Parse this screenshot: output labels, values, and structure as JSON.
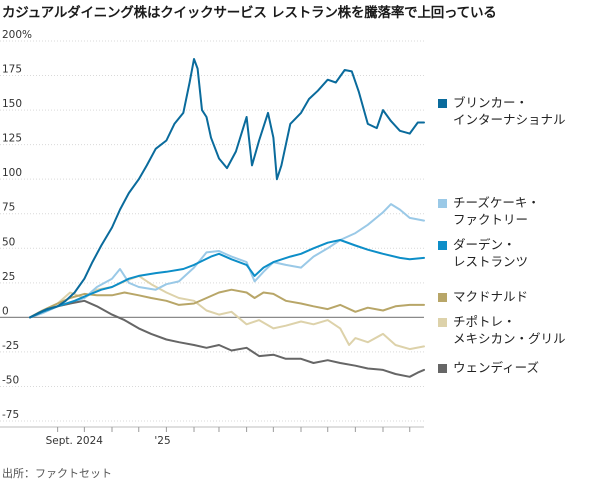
{
  "title": "カジュアルダイニング株はクイックサービス レストラン株を騰落率で上回っている",
  "source": "出所：ファクトセット",
  "chart_data": {
    "type": "line",
    "y_unit_suffix": "%",
    "ylim": [
      -75,
      200
    ],
    "yticks": [
      200,
      175,
      150,
      125,
      100,
      75,
      50,
      25,
      0,
      -25,
      -50,
      -75
    ],
    "ytick_labels": [
      "200%",
      "175",
      "150",
      "125",
      "100",
      "75",
      "50",
      "25",
      "0",
      "-25",
      "-50",
      "-75"
    ],
    "xlim": [
      "2024-08-01",
      "2025-10-17"
    ],
    "xtick_labels": [
      {
        "date": "2024-09-01",
        "label": "Sept. 2024"
      },
      {
        "date": "2025-01-01",
        "label": "'25"
      }
    ],
    "month_ticks": [
      "2024-09-01",
      "2024-10-01",
      "2024-11-01",
      "2024-12-01",
      "2025-01-01",
      "2025-02-01",
      "2025-03-01",
      "2025-04-01",
      "2025-05-01",
      "2025-06-01",
      "2025-07-01",
      "2025-08-01",
      "2025-09-01",
      "2025-10-01"
    ],
    "series": [
      {
        "name": "ブリンカー・\nインターナショナル",
        "color": "#0a6b9c",
        "points": [
          [
            "2024-08-01",
            0
          ],
          [
            "2024-08-10",
            3
          ],
          [
            "2024-08-20",
            6
          ],
          [
            "2024-09-01",
            8
          ],
          [
            "2024-09-10",
            12
          ],
          [
            "2024-09-20",
            18
          ],
          [
            "2024-10-01",
            28
          ],
          [
            "2024-10-10",
            40
          ],
          [
            "2024-10-20",
            52
          ],
          [
            "2024-11-01",
            65
          ],
          [
            "2024-11-10",
            78
          ],
          [
            "2024-11-20",
            90
          ],
          [
            "2024-12-01",
            100
          ],
          [
            "2024-12-10",
            110
          ],
          [
            "2024-12-20",
            122
          ],
          [
            "2025-01-01",
            128
          ],
          [
            "2025-01-10",
            140
          ],
          [
            "2025-01-20",
            148
          ],
          [
            "2025-01-27",
            170
          ],
          [
            "2025-02-01",
            187
          ],
          [
            "2025-02-05",
            180
          ],
          [
            "2025-02-10",
            150
          ],
          [
            "2025-02-15",
            145
          ],
          [
            "2025-02-20",
            130
          ],
          [
            "2025-03-01",
            115
          ],
          [
            "2025-03-10",
            108
          ],
          [
            "2025-03-20",
            120
          ],
          [
            "2025-04-01",
            145
          ],
          [
            "2025-04-07",
            110
          ],
          [
            "2025-04-15",
            128
          ],
          [
            "2025-04-25",
            148
          ],
          [
            "2025-05-01",
            130
          ],
          [
            "2025-05-05",
            100
          ],
          [
            "2025-05-10",
            110
          ],
          [
            "2025-05-20",
            140
          ],
          [
            "2025-06-01",
            148
          ],
          [
            "2025-06-10",
            158
          ],
          [
            "2025-06-20",
            164
          ],
          [
            "2025-07-01",
            172
          ],
          [
            "2025-07-10",
            170
          ],
          [
            "2025-07-20",
            179
          ],
          [
            "2025-07-28",
            178
          ],
          [
            "2025-08-05",
            163
          ],
          [
            "2025-08-15",
            140
          ],
          [
            "2025-08-25",
            137
          ],
          [
            "2025-09-01",
            150
          ],
          [
            "2025-09-10",
            142
          ],
          [
            "2025-09-20",
            135
          ],
          [
            "2025-10-01",
            133
          ],
          [
            "2025-10-10",
            141
          ],
          [
            "2025-10-17",
            141
          ]
        ]
      },
      {
        "name": "チーズケーキ・\nファクトリー",
        "color": "#9ac9e7",
        "points": [
          [
            "2024-08-01",
            0
          ],
          [
            "2024-08-15",
            3
          ],
          [
            "2024-09-01",
            8
          ],
          [
            "2024-09-15",
            10
          ],
          [
            "2024-10-01",
            14
          ],
          [
            "2024-10-15",
            22
          ],
          [
            "2024-11-01",
            28
          ],
          [
            "2024-11-10",
            35
          ],
          [
            "2024-11-20",
            25
          ],
          [
            "2024-12-01",
            22
          ],
          [
            "2024-12-20",
            20
          ],
          [
            "2025-01-01",
            24
          ],
          [
            "2025-01-15",
            26
          ],
          [
            "2025-02-01",
            36
          ],
          [
            "2025-02-15",
            47
          ],
          [
            "2025-03-01",
            48
          ],
          [
            "2025-03-15",
            44
          ],
          [
            "2025-04-01",
            40
          ],
          [
            "2025-04-10",
            26
          ],
          [
            "2025-04-20",
            33
          ],
          [
            "2025-05-01",
            40
          ],
          [
            "2025-05-15",
            38
          ],
          [
            "2025-06-01",
            36
          ],
          [
            "2025-06-15",
            44
          ],
          [
            "2025-07-01",
            50
          ],
          [
            "2025-07-15",
            56
          ],
          [
            "2025-08-01",
            61
          ],
          [
            "2025-08-15",
            67
          ],
          [
            "2025-09-01",
            76
          ],
          [
            "2025-09-10",
            82
          ],
          [
            "2025-09-20",
            78
          ],
          [
            "2025-10-01",
            72
          ],
          [
            "2025-10-17",
            70
          ]
        ]
      },
      {
        "name": "ダーデン・\nレストランツ",
        "color": "#0d8ec8",
        "points": [
          [
            "2024-08-01",
            0
          ],
          [
            "2024-08-15",
            4
          ],
          [
            "2024-09-01",
            8
          ],
          [
            "2024-09-20",
            12
          ],
          [
            "2024-10-01",
            15
          ],
          [
            "2024-10-20",
            20
          ],
          [
            "2024-11-01",
            22
          ],
          [
            "2024-11-20",
            28
          ],
          [
            "2024-12-01",
            30
          ],
          [
            "2024-12-20",
            32
          ],
          [
            "2025-01-01",
            33
          ],
          [
            "2025-01-20",
            35
          ],
          [
            "2025-02-01",
            38
          ],
          [
            "2025-02-20",
            44
          ],
          [
            "2025-03-01",
            46
          ],
          [
            "2025-03-15",
            42
          ],
          [
            "2025-04-01",
            38
          ],
          [
            "2025-04-10",
            30
          ],
          [
            "2025-04-20",
            36
          ],
          [
            "2025-05-01",
            40
          ],
          [
            "2025-05-20",
            44
          ],
          [
            "2025-06-01",
            46
          ],
          [
            "2025-06-15",
            50
          ],
          [
            "2025-07-01",
            54
          ],
          [
            "2025-07-15",
            56
          ],
          [
            "2025-08-01",
            52
          ],
          [
            "2025-08-15",
            49
          ],
          [
            "2025-09-01",
            46
          ],
          [
            "2025-09-20",
            43
          ],
          [
            "2025-10-01",
            42
          ],
          [
            "2025-10-17",
            43
          ]
        ]
      },
      {
        "name": "マクドナルド",
        "color": "#b8a668",
        "points": [
          [
            "2024-08-01",
            0
          ],
          [
            "2024-08-15",
            5
          ],
          [
            "2024-09-01",
            10
          ],
          [
            "2024-09-15",
            14
          ],
          [
            "2024-10-01",
            17
          ],
          [
            "2024-10-15",
            16
          ],
          [
            "2024-11-01",
            16
          ],
          [
            "2024-11-15",
            18
          ],
          [
            "2024-12-01",
            16
          ],
          [
            "2024-12-15",
            14
          ],
          [
            "2025-01-01",
            12
          ],
          [
            "2025-01-15",
            9
          ],
          [
            "2025-02-01",
            10
          ],
          [
            "2025-02-15",
            14
          ],
          [
            "2025-03-01",
            18
          ],
          [
            "2025-03-15",
            20
          ],
          [
            "2025-04-01",
            18
          ],
          [
            "2025-04-10",
            14
          ],
          [
            "2025-04-20",
            18
          ],
          [
            "2025-05-01",
            17
          ],
          [
            "2025-05-15",
            12
          ],
          [
            "2025-06-01",
            10
          ],
          [
            "2025-06-15",
            8
          ],
          [
            "2025-07-01",
            6
          ],
          [
            "2025-07-15",
            9
          ],
          [
            "2025-08-01",
            4
          ],
          [
            "2025-08-15",
            7
          ],
          [
            "2025-09-01",
            5
          ],
          [
            "2025-09-15",
            8
          ],
          [
            "2025-10-01",
            9
          ],
          [
            "2025-10-17",
            9
          ]
        ]
      },
      {
        "name": "チポトレ・\nメキシカン・グリル",
        "color": "#ddd2aa",
        "points": [
          [
            "2024-08-01",
            0
          ],
          [
            "2024-08-15",
            5
          ],
          [
            "2024-09-01",
            10
          ],
          [
            "2024-09-15",
            18
          ],
          [
            "2024-10-01",
            14
          ],
          [
            "2024-10-15",
            20
          ],
          [
            "2024-11-01",
            22
          ],
          [
            "2024-11-15",
            26
          ],
          [
            "2024-12-01",
            30
          ],
          [
            "2024-12-15",
            24
          ],
          [
            "2025-01-01",
            18
          ],
          [
            "2025-01-15",
            14
          ],
          [
            "2025-02-01",
            12
          ],
          [
            "2025-02-15",
            5
          ],
          [
            "2025-03-01",
            2
          ],
          [
            "2025-03-15",
            4
          ],
          [
            "2025-04-01",
            -5
          ],
          [
            "2025-04-15",
            -2
          ],
          [
            "2025-05-01",
            -8
          ],
          [
            "2025-05-15",
            -6
          ],
          [
            "2025-06-01",
            -3
          ],
          [
            "2025-06-15",
            -5
          ],
          [
            "2025-07-01",
            -2
          ],
          [
            "2025-07-15",
            -8
          ],
          [
            "2025-07-25",
            -20
          ],
          [
            "2025-08-01",
            -15
          ],
          [
            "2025-08-15",
            -18
          ],
          [
            "2025-09-01",
            -12
          ],
          [
            "2025-09-15",
            -20
          ],
          [
            "2025-10-01",
            -23
          ],
          [
            "2025-10-17",
            -21
          ]
        ]
      },
      {
        "name": "ウェンディーズ",
        "color": "#666666",
        "points": [
          [
            "2024-08-01",
            0
          ],
          [
            "2024-08-15",
            4
          ],
          [
            "2024-09-01",
            8
          ],
          [
            "2024-09-15",
            10
          ],
          [
            "2024-10-01",
            12
          ],
          [
            "2024-10-15",
            8
          ],
          [
            "2024-11-01",
            2
          ],
          [
            "2024-11-15",
            -2
          ],
          [
            "2024-12-01",
            -8
          ],
          [
            "2024-12-15",
            -12
          ],
          [
            "2025-01-01",
            -16
          ],
          [
            "2025-01-15",
            -18
          ],
          [
            "2025-02-01",
            -20
          ],
          [
            "2025-02-15",
            -22
          ],
          [
            "2025-03-01",
            -20
          ],
          [
            "2025-03-15",
            -24
          ],
          [
            "2025-04-01",
            -22
          ],
          [
            "2025-04-15",
            -28
          ],
          [
            "2025-05-01",
            -27
          ],
          [
            "2025-05-15",
            -30
          ],
          [
            "2025-06-01",
            -30
          ],
          [
            "2025-06-15",
            -33
          ],
          [
            "2025-07-01",
            -31
          ],
          [
            "2025-07-15",
            -33
          ],
          [
            "2025-08-01",
            -35
          ],
          [
            "2025-08-15",
            -37
          ],
          [
            "2025-09-01",
            -38
          ],
          [
            "2025-09-15",
            -41
          ],
          [
            "2025-10-01",
            -43
          ],
          [
            "2025-10-10",
            -40
          ],
          [
            "2025-10-17",
            -38
          ]
        ]
      }
    ]
  }
}
